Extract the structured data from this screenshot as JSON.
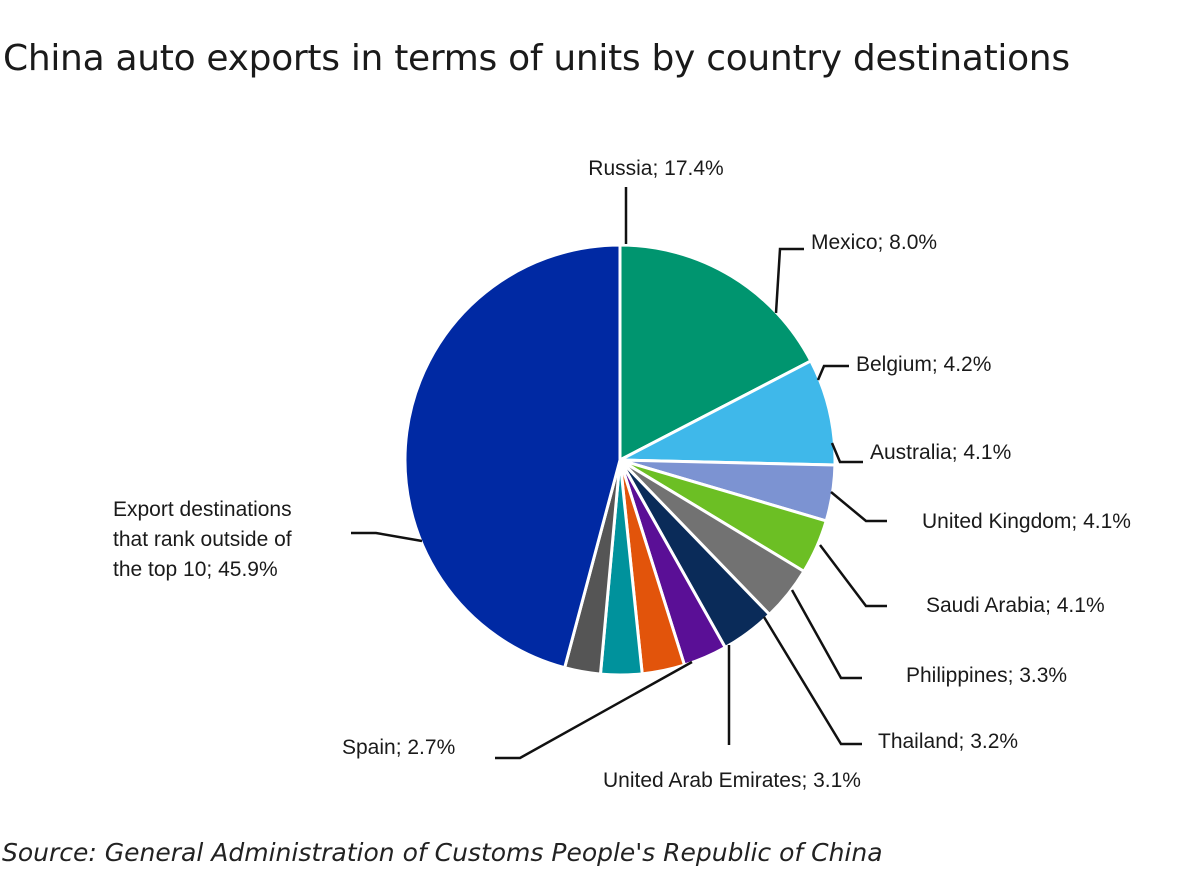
{
  "title": "China auto exports in terms of units by country destinations",
  "source": "Source: General Administration of Customs People's Republic of China",
  "chart_data": {
    "type": "pie",
    "title": "China auto exports in terms of units by country destinations",
    "unit": "%",
    "slices": [
      {
        "label": "Russia",
        "value": 17.4,
        "color": "#00956f",
        "display": [
          "Russia; 17.4%"
        ]
      },
      {
        "label": "Mexico",
        "value": 8.0,
        "color": "#3fb8ea",
        "display": [
          "Mexico; 8.0%"
        ]
      },
      {
        "label": "Belgium",
        "value": 4.2,
        "color": "#7c93d2",
        "display": [
          "Belgium; 4.2%"
        ]
      },
      {
        "label": "Australia",
        "value": 4.1,
        "color": "#6cbf24",
        "display": [
          "Australia; 4.1%"
        ]
      },
      {
        "label": "United Kingdom",
        "value": 4.1,
        "color": "#727272",
        "display": [
          "United Kingdom; 4.1%"
        ]
      },
      {
        "label": "Saudi Arabia",
        "value": 4.1,
        "color": "#0a2b59",
        "display": [
          "Saudi Arabia; 4.1%"
        ]
      },
      {
        "label": "Philippines",
        "value": 3.3,
        "color": "#5a0f96",
        "display": [
          "Philippines; 3.3%"
        ]
      },
      {
        "label": "Thailand",
        "value": 3.2,
        "color": "#e2540b",
        "display": [
          "Thailand; 3.2%"
        ]
      },
      {
        "label": "United Arab Emirates",
        "value": 3.1,
        "color": "#00929c",
        "display": [
          "United Arab Emirates; 3.1%"
        ]
      },
      {
        "label": "Spain",
        "value": 2.7,
        "color": "#555555",
        "display": [
          "Spain; 2.7%"
        ]
      },
      {
        "label": "Export destinations that rank outside of the top 10",
        "value": 45.9,
        "color": "#0029a3",
        "display": [
          "Export destinations",
          "that rank outside of",
          "the top 10; 45.9%"
        ]
      }
    ]
  }
}
